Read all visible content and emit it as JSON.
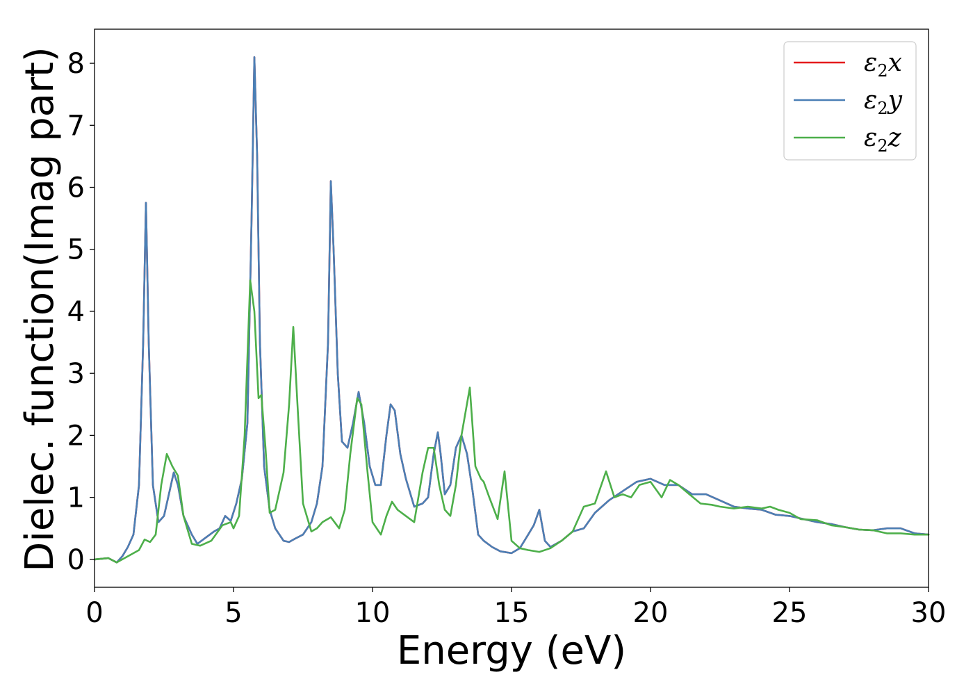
{
  "chart_data": {
    "type": "line",
    "title": "",
    "xlabel": "Energy (eV)",
    "ylabel": "Dielec. function(Imag part)",
    "xlim": [
      0,
      30
    ],
    "ylim": [
      -0.45,
      8.55
    ],
    "xticks": [
      0,
      5,
      10,
      15,
      20,
      25,
      30
    ],
    "yticks": [
      0,
      1,
      2,
      3,
      4,
      5,
      6,
      7,
      8
    ],
    "grid": false,
    "legend_position": "top-right",
    "series": [
      {
        "name": "ε2x",
        "legend": {
          "base": "ε",
          "sub": "2",
          "var": "x"
        },
        "color": "#e41a1c",
        "x": [
          0,
          0.5,
          0.8,
          1.0,
          1.2,
          1.4,
          1.6,
          1.75,
          1.85,
          1.95,
          2.1,
          2.3,
          2.5,
          2.7,
          2.85,
          3.0,
          3.2,
          3.5,
          3.7,
          4.0,
          4.3,
          4.5,
          4.7,
          4.9,
          5.1,
          5.3,
          5.5,
          5.65,
          5.75,
          5.85,
          5.95,
          6.1,
          6.3,
          6.5,
          6.8,
          7.0,
          7.2,
          7.5,
          7.8,
          8.0,
          8.2,
          8.4,
          8.5,
          8.6,
          8.75,
          8.9,
          9.1,
          9.3,
          9.5,
          9.7,
          9.9,
          10.1,
          10.3,
          10.5,
          10.65,
          10.8,
          11.0,
          11.2,
          11.5,
          11.8,
          12.0,
          12.2,
          12.35,
          12.45,
          12.6,
          12.8,
          13.0,
          13.2,
          13.4,
          13.6,
          13.8,
          14.0,
          14.3,
          14.6,
          15.0,
          15.3,
          15.6,
          15.8,
          16.0,
          16.2,
          16.4,
          16.8,
          17.2,
          17.6,
          18.0,
          18.5,
          19.0,
          19.5,
          20.0,
          20.5,
          21.0,
          21.5,
          22.0,
          22.5,
          23.0,
          23.5,
          24.0,
          24.5,
          25.0,
          25.5,
          26.0,
          26.5,
          27.0,
          27.5,
          28.0,
          28.5,
          29.0,
          29.5,
          30.0
        ],
        "y": [
          0,
          0.02,
          -0.05,
          0.05,
          0.2,
          0.4,
          1.2,
          3.5,
          5.75,
          3.5,
          1.2,
          0.6,
          0.7,
          1.1,
          1.4,
          1.2,
          0.7,
          0.4,
          0.25,
          0.35,
          0.45,
          0.5,
          0.7,
          0.62,
          0.9,
          1.3,
          2.2,
          5.5,
          8.1,
          6.5,
          3.5,
          1.5,
          0.8,
          0.5,
          0.3,
          0.28,
          0.33,
          0.4,
          0.6,
          0.9,
          1.5,
          3.5,
          6.1,
          5.0,
          3.0,
          1.9,
          1.8,
          2.2,
          2.7,
          2.2,
          1.5,
          1.2,
          1.2,
          2.0,
          2.5,
          2.4,
          1.7,
          1.3,
          0.85,
          0.9,
          1.0,
          1.7,
          2.05,
          1.7,
          1.05,
          1.2,
          1.8,
          2.0,
          1.7,
          1.1,
          0.4,
          0.3,
          0.2,
          0.13,
          0.1,
          0.18,
          0.4,
          0.55,
          0.8,
          0.3,
          0.2,
          0.3,
          0.45,
          0.5,
          0.75,
          0.95,
          1.1,
          1.25,
          1.3,
          1.2,
          1.2,
          1.05,
          1.05,
          0.95,
          0.85,
          0.82,
          0.8,
          0.72,
          0.7,
          0.65,
          0.6,
          0.57,
          0.52,
          0.48,
          0.47,
          0.5,
          0.5,
          0.42,
          0.4
        ]
      },
      {
        "name": "ε2y",
        "legend": {
          "base": "ε",
          "sub": "2",
          "var": "y"
        },
        "color": "#4a7fb5",
        "x": [
          0,
          0.5,
          0.8,
          1.0,
          1.2,
          1.4,
          1.6,
          1.75,
          1.85,
          1.95,
          2.1,
          2.3,
          2.5,
          2.7,
          2.85,
          3.0,
          3.2,
          3.5,
          3.7,
          4.0,
          4.3,
          4.5,
          4.7,
          4.9,
          5.1,
          5.3,
          5.5,
          5.65,
          5.75,
          5.85,
          5.95,
          6.1,
          6.3,
          6.5,
          6.8,
          7.0,
          7.2,
          7.5,
          7.8,
          8.0,
          8.2,
          8.4,
          8.5,
          8.6,
          8.75,
          8.9,
          9.1,
          9.3,
          9.5,
          9.7,
          9.9,
          10.1,
          10.3,
          10.5,
          10.65,
          10.8,
          11.0,
          11.2,
          11.5,
          11.8,
          12.0,
          12.2,
          12.35,
          12.45,
          12.6,
          12.8,
          13.0,
          13.2,
          13.4,
          13.6,
          13.8,
          14.0,
          14.3,
          14.6,
          15.0,
          15.3,
          15.6,
          15.8,
          16.0,
          16.2,
          16.4,
          16.8,
          17.2,
          17.6,
          18.0,
          18.5,
          19.0,
          19.5,
          20.0,
          20.5,
          21.0,
          21.5,
          22.0,
          22.5,
          23.0,
          23.5,
          24.0,
          24.5,
          25.0,
          25.5,
          26.0,
          26.5,
          27.0,
          27.5,
          28.0,
          28.5,
          29.0,
          29.5,
          30.0
        ],
        "y": [
          0,
          0.02,
          -0.05,
          0.05,
          0.2,
          0.4,
          1.2,
          3.5,
          5.75,
          3.5,
          1.2,
          0.6,
          0.7,
          1.1,
          1.4,
          1.2,
          0.7,
          0.4,
          0.25,
          0.35,
          0.45,
          0.5,
          0.7,
          0.62,
          0.9,
          1.3,
          2.2,
          5.5,
          8.1,
          6.5,
          3.5,
          1.5,
          0.8,
          0.5,
          0.3,
          0.28,
          0.33,
          0.4,
          0.6,
          0.9,
          1.5,
          3.5,
          6.1,
          5.0,
          3.0,
          1.9,
          1.8,
          2.2,
          2.7,
          2.2,
          1.5,
          1.2,
          1.2,
          2.0,
          2.5,
          2.4,
          1.7,
          1.3,
          0.85,
          0.9,
          1.0,
          1.7,
          2.05,
          1.7,
          1.05,
          1.2,
          1.8,
          2.0,
          1.7,
          1.1,
          0.4,
          0.3,
          0.2,
          0.13,
          0.1,
          0.18,
          0.4,
          0.55,
          0.8,
          0.3,
          0.2,
          0.3,
          0.45,
          0.5,
          0.75,
          0.95,
          1.1,
          1.25,
          1.3,
          1.2,
          1.2,
          1.05,
          1.05,
          0.95,
          0.85,
          0.82,
          0.8,
          0.72,
          0.7,
          0.65,
          0.6,
          0.57,
          0.52,
          0.48,
          0.47,
          0.5,
          0.5,
          0.42,
          0.4
        ]
      },
      {
        "name": "ε2z",
        "legend": {
          "base": "ε",
          "sub": "2",
          "var": "z"
        },
        "color": "#4daf4a",
        "x": [
          0,
          0.5,
          0.8,
          1.2,
          1.6,
          1.8,
          2.0,
          2.2,
          2.4,
          2.6,
          2.8,
          3.0,
          3.2,
          3.5,
          3.8,
          4.2,
          4.6,
          4.9,
          5.0,
          5.2,
          5.4,
          5.6,
          5.75,
          5.9,
          6.0,
          6.15,
          6.3,
          6.5,
          6.8,
          7.0,
          7.15,
          7.3,
          7.5,
          7.8,
          8.0,
          8.2,
          8.5,
          8.8,
          9.0,
          9.2,
          9.45,
          9.6,
          9.8,
          10.0,
          10.3,
          10.5,
          10.7,
          10.9,
          11.2,
          11.5,
          11.8,
          12.0,
          12.2,
          12.4,
          12.6,
          12.8,
          13.0,
          13.2,
          13.5,
          13.7,
          13.9,
          14.0,
          14.2,
          14.5,
          14.75,
          15.0,
          15.3,
          15.6,
          16.0,
          16.4,
          16.8,
          17.2,
          17.6,
          18.0,
          18.4,
          18.7,
          19.0,
          19.3,
          19.6,
          20.0,
          20.4,
          20.7,
          21.0,
          21.4,
          21.8,
          22.2,
          22.5,
          23.0,
          23.5,
          24.0,
          24.3,
          24.6,
          25.0,
          25.4,
          26.0,
          26.5,
          27.0,
          27.5,
          28.0,
          28.5,
          29.0,
          29.5,
          30.0
        ],
        "y": [
          0,
          0.02,
          -0.05,
          0.05,
          0.15,
          0.32,
          0.28,
          0.4,
          1.2,
          1.7,
          1.5,
          1.35,
          0.7,
          0.25,
          0.22,
          0.3,
          0.55,
          0.6,
          0.5,
          0.7,
          2.0,
          4.5,
          4.0,
          2.6,
          2.65,
          1.8,
          0.75,
          0.8,
          1.4,
          2.5,
          3.75,
          2.5,
          0.9,
          0.45,
          0.5,
          0.6,
          0.68,
          0.5,
          0.8,
          1.7,
          2.6,
          2.5,
          1.5,
          0.6,
          0.4,
          0.7,
          0.93,
          0.8,
          0.7,
          0.6,
          1.4,
          1.8,
          1.8,
          1.2,
          0.8,
          0.7,
          1.2,
          2.0,
          2.77,
          1.5,
          1.3,
          1.25,
          1.0,
          0.65,
          1.42,
          0.3,
          0.18,
          0.15,
          0.12,
          0.18,
          0.3,
          0.45,
          0.85,
          0.9,
          1.42,
          1.0,
          1.05,
          1.0,
          1.2,
          1.25,
          1.0,
          1.28,
          1.2,
          1.05,
          0.9,
          0.88,
          0.85,
          0.82,
          0.85,
          0.82,
          0.85,
          0.8,
          0.75,
          0.65,
          0.63,
          0.55,
          0.52,
          0.48,
          0.47,
          0.42,
          0.42,
          0.4,
          0.4
        ]
      }
    ]
  }
}
